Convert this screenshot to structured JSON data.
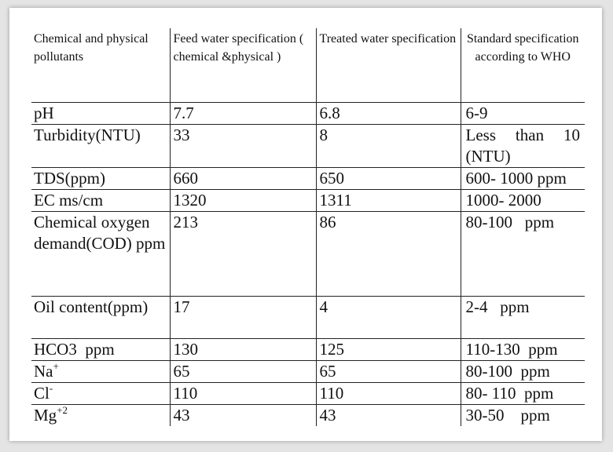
{
  "table": {
    "headers": [
      "Chemical and physical pollutants",
      "Feed water specification ( chemical &physical )",
      "Treated water specification",
      "Standard specification according to WHO"
    ],
    "rows": [
      {
        "param": "pH",
        "feed": "7.7",
        "treated": "6.8",
        "standard": "6-9"
      },
      {
        "param": "Turbidity(NTU)",
        "feed": "33",
        "treated": "8",
        "standard": "Less than 10 (NTU)"
      },
      {
        "param": "TDS(ppm)",
        "feed": "660",
        "treated": "650",
        "standard": "600- 1000 ppm"
      },
      {
        "param": "EC ms/cm",
        "feed": "1320",
        "treated": "1311",
        "standard": "1000- 2000"
      },
      {
        "param": "Chemical oxygen demand(COD) ppm",
        "feed": "213",
        "treated": "86",
        "standard": "80-100   ppm"
      },
      {
        "param": "Oil content(ppm)",
        "feed": "17",
        "treated": "4",
        "standard": "2-4   ppm"
      },
      {
        "param": "HCO3  ppm",
        "feed": "130",
        "treated": "125",
        "standard": "110-130  ppm"
      },
      {
        "param": "Na",
        "param_sup": "+",
        "feed": "65",
        "treated": "65",
        "standard": "80-100  ppm"
      },
      {
        "param": "Cl",
        "param_sup": "-",
        "feed": "110",
        "treated": "110",
        "standard": "80- 110  ppm"
      },
      {
        "param": "Mg",
        "param_sup": "+2",
        "feed": "43",
        "treated": "43",
        "standard": "30-50    ppm"
      }
    ]
  }
}
